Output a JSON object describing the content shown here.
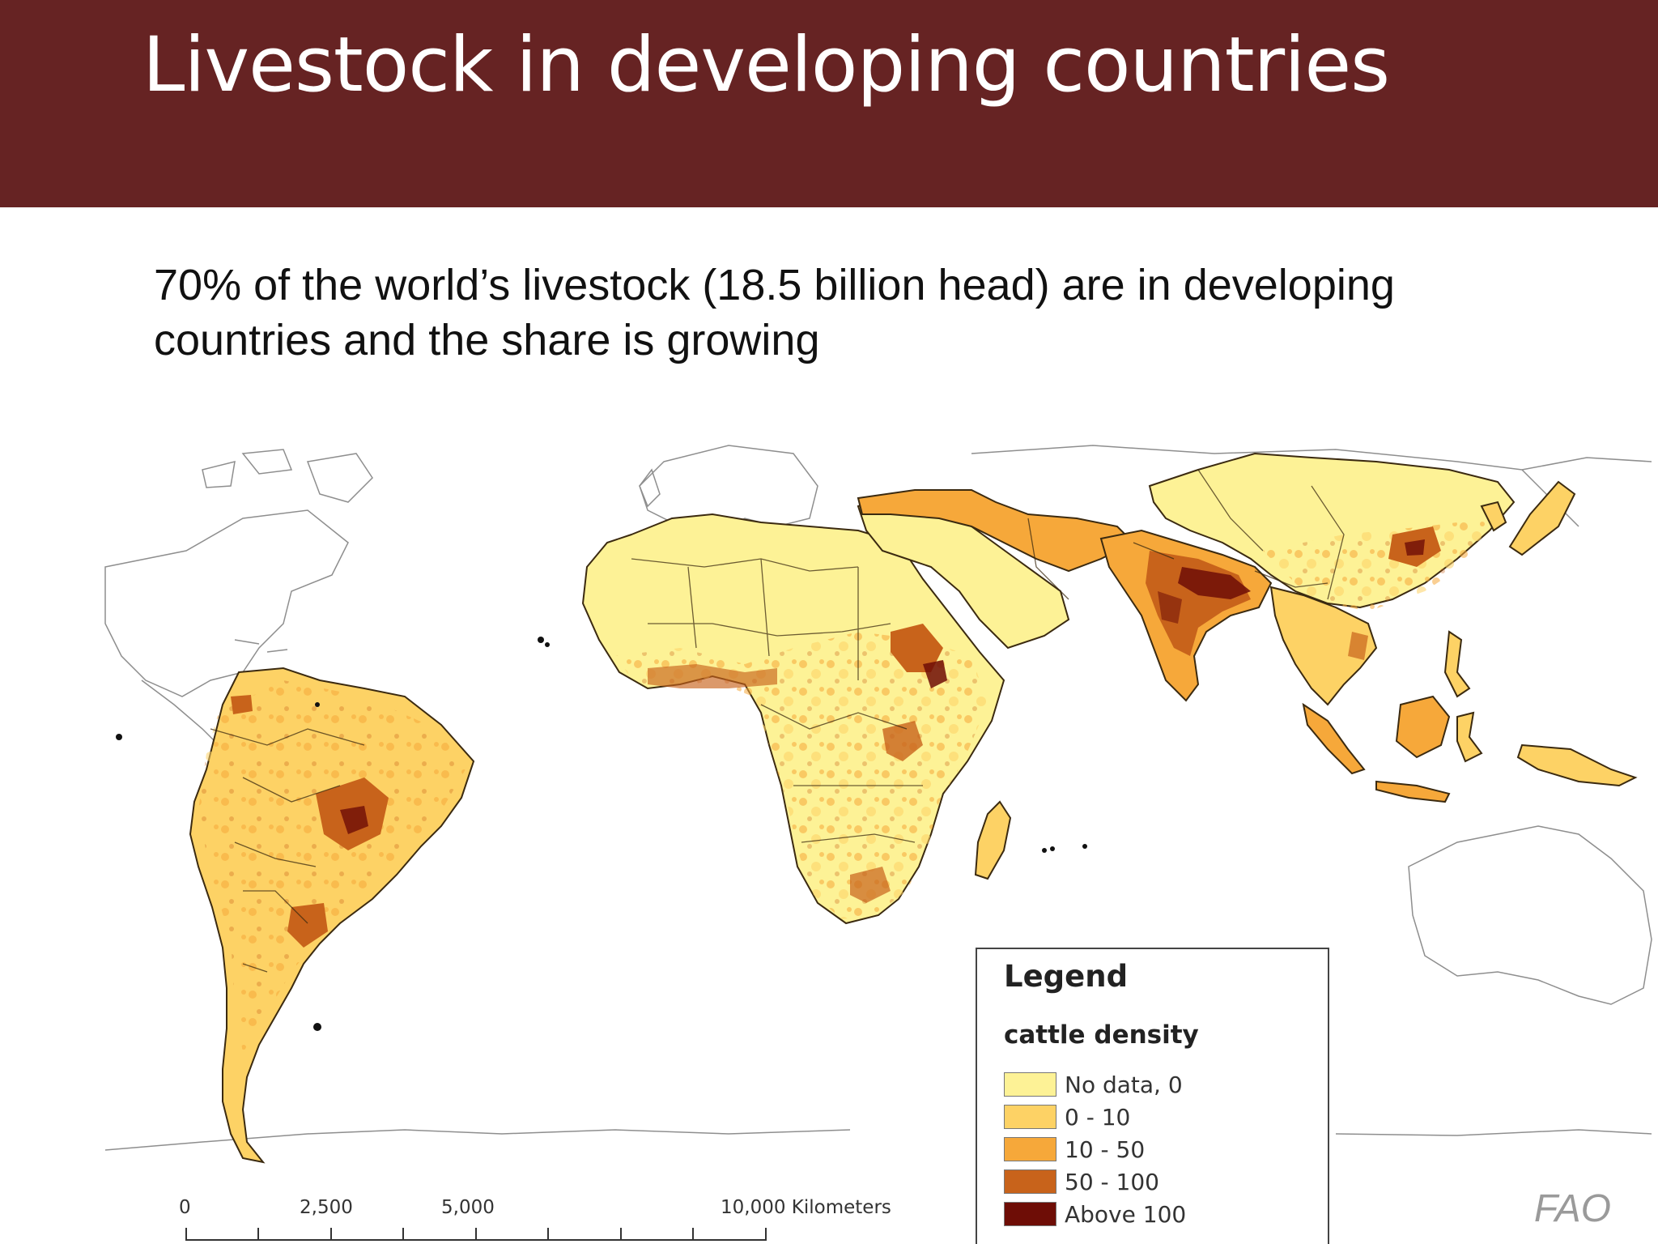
{
  "slide": {
    "title": "Livestock in developing countries",
    "subtitle": "70% of the world’s livestock (18.5 billion head) are in developing countries and the share is growing",
    "source": "FAO"
  },
  "colors": {
    "header_background": "#662323",
    "density_no_data": "#fdf296",
    "density_0_10": "#fdd265",
    "density_10_50": "#f6a83a",
    "density_50_100": "#c8631b",
    "density_above_100": "#6e0d06"
  },
  "legend": {
    "title": "Legend",
    "subtitle": "cattle density",
    "items": [
      {
        "label": "No data, 0",
        "color": "#fdf296"
      },
      {
        "label": "0 - 10",
        "color": "#fdd265"
      },
      {
        "label": "10 - 50",
        "color": "#f6a83a"
      },
      {
        "label": "50 - 100",
        "color": "#c8631b"
      },
      {
        "label": "Above 100",
        "color": "#6e0d06"
      }
    ]
  },
  "scale_bar": {
    "labels": [
      "0",
      "2,500",
      "5,000",
      "10,000 Kilometers"
    ]
  },
  "map": {
    "subject": "cattle density in developing regions: Latin America, Africa, Middle East, South and East Asia"
  }
}
